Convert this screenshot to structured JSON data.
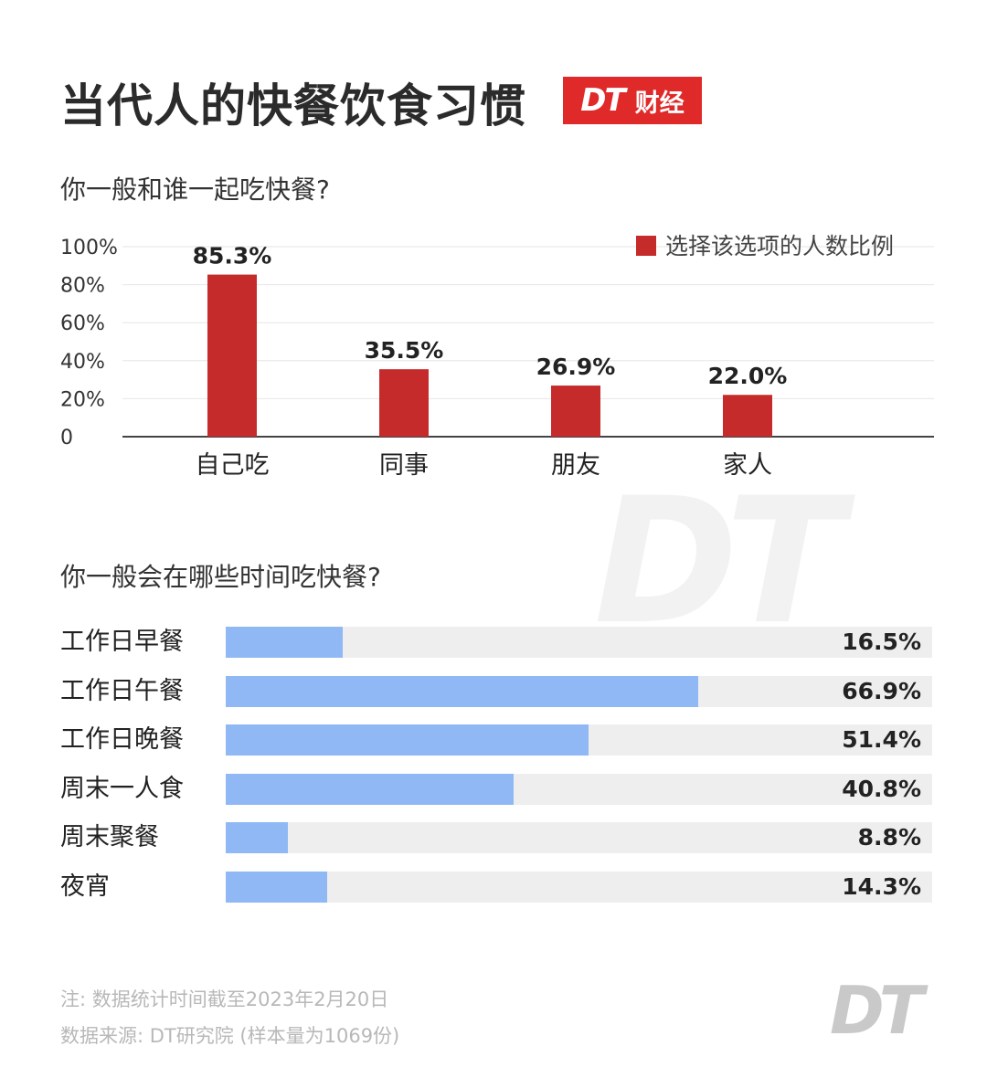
{
  "header": {
    "title": "当代人的快餐饮食习惯",
    "brand_dt": "DT",
    "brand_text": "财经"
  },
  "watermark": "DT",
  "colors": {
    "brand_red": "#e02a2a",
    "bar_red": "#c62b2b",
    "bar_blue": "#8fb8f4",
    "track_gray": "#eeeeee"
  },
  "chart_data": [
    {
      "type": "bar",
      "title": "你一般和谁一起吃快餐?",
      "categories": [
        "自己吃",
        "同事",
        "朋友",
        "家人"
      ],
      "series": [
        {
          "name": "选择该选项的人数比例",
          "values": [
            85.3,
            35.5,
            26.9,
            22.0
          ]
        }
      ],
      "value_labels": [
        "85.3%",
        "35.5%",
        "26.9%",
        "22.0%"
      ],
      "yticks": [
        "0",
        "20%",
        "40%",
        "60%",
        "80%",
        "100%"
      ],
      "ylim": [
        0,
        100
      ],
      "grid": true,
      "legend_position": "top-right"
    },
    {
      "type": "bar",
      "orientation": "horizontal",
      "title": "你一般会在哪些时间吃快餐?",
      "categories": [
        "工作日早餐",
        "工作日午餐",
        "工作日晚餐",
        "周末一人食",
        "周末聚餐",
        "夜宵"
      ],
      "values": [
        16.5,
        66.9,
        51.4,
        40.8,
        8.8,
        14.3
      ],
      "value_labels": [
        "16.5%",
        "66.9%",
        "51.4%",
        "40.8%",
        "8.8%",
        "14.3%"
      ],
      "xlim": [
        0,
        100
      ]
    }
  ],
  "footer": {
    "note": "注: 数据统计时间截至2023年2月20日",
    "source": "数据来源: DT研究院 (样本量为1069份)",
    "logo": "DT"
  }
}
